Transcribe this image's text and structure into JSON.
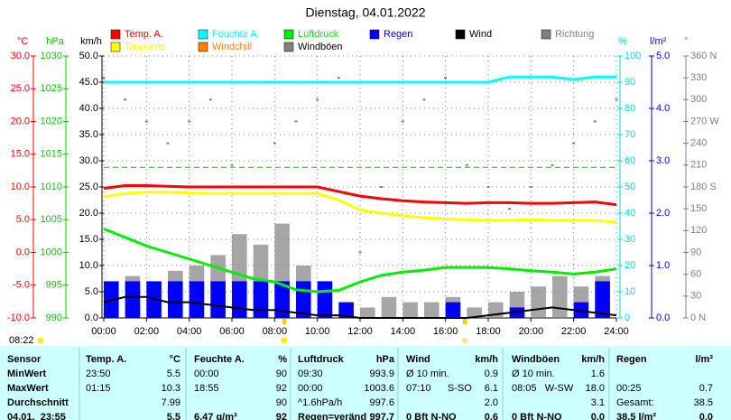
{
  "chart_data": {
    "type": "line",
    "title": "Dienstag, 04.01.2022",
    "time_label": "08:22",
    "x": [
      0,
      1,
      2,
      3,
      4,
      5,
      6,
      7,
      8,
      9,
      10,
      11,
      12,
      13,
      14,
      15,
      16,
      17,
      18,
      19,
      20,
      21,
      22,
      23,
      24
    ],
    "xlim": [
      0,
      24
    ],
    "xticks": [
      {
        "value": 0,
        "label": "00:00"
      },
      {
        "value": 2,
        "label": "02:00"
      },
      {
        "value": 4,
        "label": "04:00"
      },
      {
        "value": 6,
        "label": "06:00"
      },
      {
        "value": 8,
        "label": "08:00"
      },
      {
        "value": 10,
        "label": "10:00"
      },
      {
        "value": 12,
        "label": "12:00"
      },
      {
        "value": 14,
        "label": "14:00"
      },
      {
        "value": 16,
        "label": "16:00"
      },
      {
        "value": 18,
        "label": "18:00"
      },
      {
        "value": 20,
        "label": "20:00"
      },
      {
        "value": 22,
        "label": "22:00"
      },
      {
        "value": 24,
        "label": "24:00"
      }
    ],
    "grid": true,
    "axes": [
      {
        "label": "°C",
        "color": "#ff0000",
        "lim": [
          -10,
          30
        ],
        "ticks": [
          {
            "value": -10,
            "label": "-10.0"
          },
          {
            "value": -5,
            "label": "-5.0"
          },
          {
            "value": 0,
            "label": "0.0"
          },
          {
            "value": 5,
            "label": "5.0"
          },
          {
            "value": 10,
            "label": "10.0"
          },
          {
            "value": 15,
            "label": "15.0"
          },
          {
            "value": 20,
            "label": "20.0"
          },
          {
            "value": 25,
            "label": "25.0"
          },
          {
            "value": 30,
            "label": "30.0"
          }
        ]
      },
      {
        "label": "hPa",
        "color": "#00cc00",
        "lim": [
          990,
          1030
        ],
        "ticks": [
          990,
          995,
          1000,
          1005,
          1010,
          1015,
          1020,
          1025,
          1030
        ]
      },
      {
        "label": "km/h",
        "color": "#000000",
        "lim": [
          0,
          50
        ],
        "ticks": [
          {
            "value": 0,
            "label": "0.0"
          },
          {
            "value": 5,
            "label": "5.0"
          },
          {
            "value": 10,
            "label": "10.0"
          },
          {
            "value": 15,
            "label": "15.0"
          },
          {
            "value": 20,
            "label": "20.0"
          },
          {
            "value": 25,
            "label": "25.0"
          },
          {
            "value": 30,
            "label": "30.0"
          },
          {
            "value": 35,
            "label": "35.0"
          },
          {
            "value": 40,
            "label": "40.0"
          },
          {
            "value": 45,
            "label": "45.0"
          },
          {
            "value": 50,
            "label": "50.0"
          }
        ]
      },
      {
        "label": "%",
        "color": "#00dddd",
        "lim": [
          0,
          100
        ],
        "ticks": [
          0,
          10,
          20,
          30,
          40,
          50,
          60,
          70,
          80,
          90,
          100
        ]
      },
      {
        "label": "l/m²",
        "color": "#0000ff",
        "lim": [
          0,
          5
        ],
        "ticks": [
          {
            "value": 0,
            "label": "0.0"
          },
          {
            "value": 1,
            "label": "1.0"
          },
          {
            "value": 2,
            "label": "2.0"
          },
          {
            "value": 3,
            "label": "3.0"
          },
          {
            "value": 4,
            "label": "4.0"
          },
          {
            "value": 5,
            "label": "5.0"
          }
        ]
      },
      {
        "label": "°",
        "color": "#808080",
        "lim": [
          0,
          360
        ],
        "ticks": [
          {
            "value": 0,
            "label": "0 N"
          },
          30,
          60,
          90,
          120,
          150,
          {
            "value": 180,
            "label": "180 S"
          },
          210,
          240,
          {
            "value": 270,
            "label": "270 W"
          },
          300,
          330,
          {
            "value": 360,
            "label": "360 N"
          }
        ]
      }
    ],
    "reference": {
      "axis": 1,
      "value": 1013,
      "color": "#00cc00"
    },
    "series": [
      {
        "name": "Windböen",
        "type": "bar",
        "color": "#808080",
        "axis": 2,
        "values": [
          5,
          8,
          6,
          9,
          10,
          12,
          16,
          14,
          18,
          10,
          7,
          3,
          2,
          4,
          3,
          3,
          4,
          2,
          3,
          5,
          6,
          8,
          6,
          8,
          6
        ]
      },
      {
        "name": "Regen",
        "type": "bar",
        "color": "#0000ff",
        "axis": 4,
        "values": [
          0.7,
          0.7,
          0.7,
          0.7,
          0.7,
          0.7,
          0.7,
          0.7,
          0.7,
          0.7,
          0.7,
          0.3,
          0,
          0,
          0,
          0,
          0.3,
          0,
          0,
          0.2,
          0,
          0,
          0.3,
          0.7,
          0.7
        ]
      },
      {
        "name": "Richtung",
        "type": "scatter",
        "color": "#808080",
        "axis": 5,
        "values": [
          330,
          300,
          270,
          240,
          270,
          300,
          210,
          180,
          240,
          270,
          300,
          330,
          90,
          180,
          270,
          300,
          330,
          210,
          180,
          150,
          180,
          210,
          240,
          270,
          300
        ]
      },
      {
        "name": "Wind",
        "type": "line",
        "color": "#000000",
        "axis": 2,
        "values": [
          3,
          4,
          4,
          3,
          3,
          2.5,
          2,
          1.5,
          1.5,
          1,
          0.5,
          0.5,
          0,
          0,
          0,
          0,
          0,
          0,
          0.5,
          1,
          1.5,
          2,
          1.5,
          1,
          0.5
        ]
      },
      {
        "name": "Luftdruck",
        "type": "line",
        "color": "#00ee00",
        "axis": 1,
        "values": [
          1003.6,
          1002.3,
          1001.0,
          1000.0,
          999.0,
          998.0,
          997.0,
          996.0,
          995.5,
          994.3,
          994.0,
          994.2,
          995.5,
          996.5,
          997.0,
          997.3,
          997.7,
          997.7,
          997.7,
          997.5,
          997.2,
          997.0,
          996.7,
          997.0,
          997.5
        ]
      },
      {
        "name": "Feuchte A.",
        "type": "line",
        "color": "#00ffff",
        "axis": 3,
        "values": [
          90,
          90,
          90,
          90,
          90,
          90,
          90,
          90,
          90,
          90,
          90,
          90,
          90,
          90,
          90,
          90,
          90,
          90,
          90,
          92,
          92,
          92,
          91,
          92,
          92
        ]
      },
      {
        "name": "Windchill",
        "type": "line",
        "color": "#ff8000",
        "axis": 0,
        "values": [
          null,
          null,
          null,
          null,
          null,
          null,
          null,
          null,
          null,
          null,
          null,
          null,
          null,
          null,
          null,
          null,
          null,
          null,
          null,
          null,
          null,
          null,
          null,
          null,
          null
        ]
      },
      {
        "name": "Taupunkt",
        "type": "line",
        "color": "#ffff00",
        "axis": 0,
        "values": [
          8.5,
          9.0,
          9.2,
          9.2,
          9.1,
          9.0,
          9.0,
          9.0,
          9.0,
          9.0,
          9.0,
          8.0,
          6.5,
          6.0,
          5.6,
          5.3,
          5.1,
          5.0,
          4.9,
          4.9,
          5.0,
          4.9,
          4.9,
          4.9,
          4.6
        ]
      },
      {
        "name": "Temp. A.",
        "type": "line",
        "color": "#ff0000",
        "axis": 0,
        "values": [
          9.8,
          10.2,
          10.2,
          10.1,
          10.0,
          10.0,
          10.0,
          10.0,
          10.0,
          10.0,
          10.0,
          9.3,
          8.6,
          8.2,
          7.9,
          7.7,
          7.6,
          7.5,
          7.6,
          7.6,
          7.5,
          7.5,
          7.6,
          7.7,
          7.3
        ]
      }
    ]
  },
  "table": {
    "header": [
      "Sensor",
      "Temp. A.",
      "°C",
      "Feuchte A.",
      "%",
      "Luftdruck",
      "hPa",
      "Wind",
      "km/h",
      "Windböen",
      "km/h",
      "Regen",
      "l/m²"
    ],
    "rows": [
      [
        "MinWert",
        "23:50",
        "5.5",
        "00:00",
        "90",
        "09:30",
        "993.9",
        "Ø 10 min.",
        "0.9",
        "Ø 10 min.",
        "1.6",
        null,
        null
      ],
      [
        "MaxWert",
        "01:15",
        "10.3",
        "18:55",
        "92",
        "00:00",
        "1003.6",
        "07:10      S-SO",
        "6.1",
        "08:05   W-SW",
        "18.0",
        "00:25",
        "0.7"
      ],
      [
        "Durchschnitt",
        null,
        "7.99",
        null,
        "90",
        "^1.6hPa/h",
        "997.6",
        null,
        "2.0",
        null,
        "3.1",
        "Gesamt:",
        "38.5"
      ],
      [
        "04.01.  23:55",
        null,
        "5.5",
        "6.47 g/m³",
        "92",
        "Regen=veränd",
        "997.7",
        "0 Bft N-NO",
        "0.6",
        "0 Bft N-NO",
        "0.0",
        "38.5 l/m²",
        "0.0"
      ]
    ]
  }
}
